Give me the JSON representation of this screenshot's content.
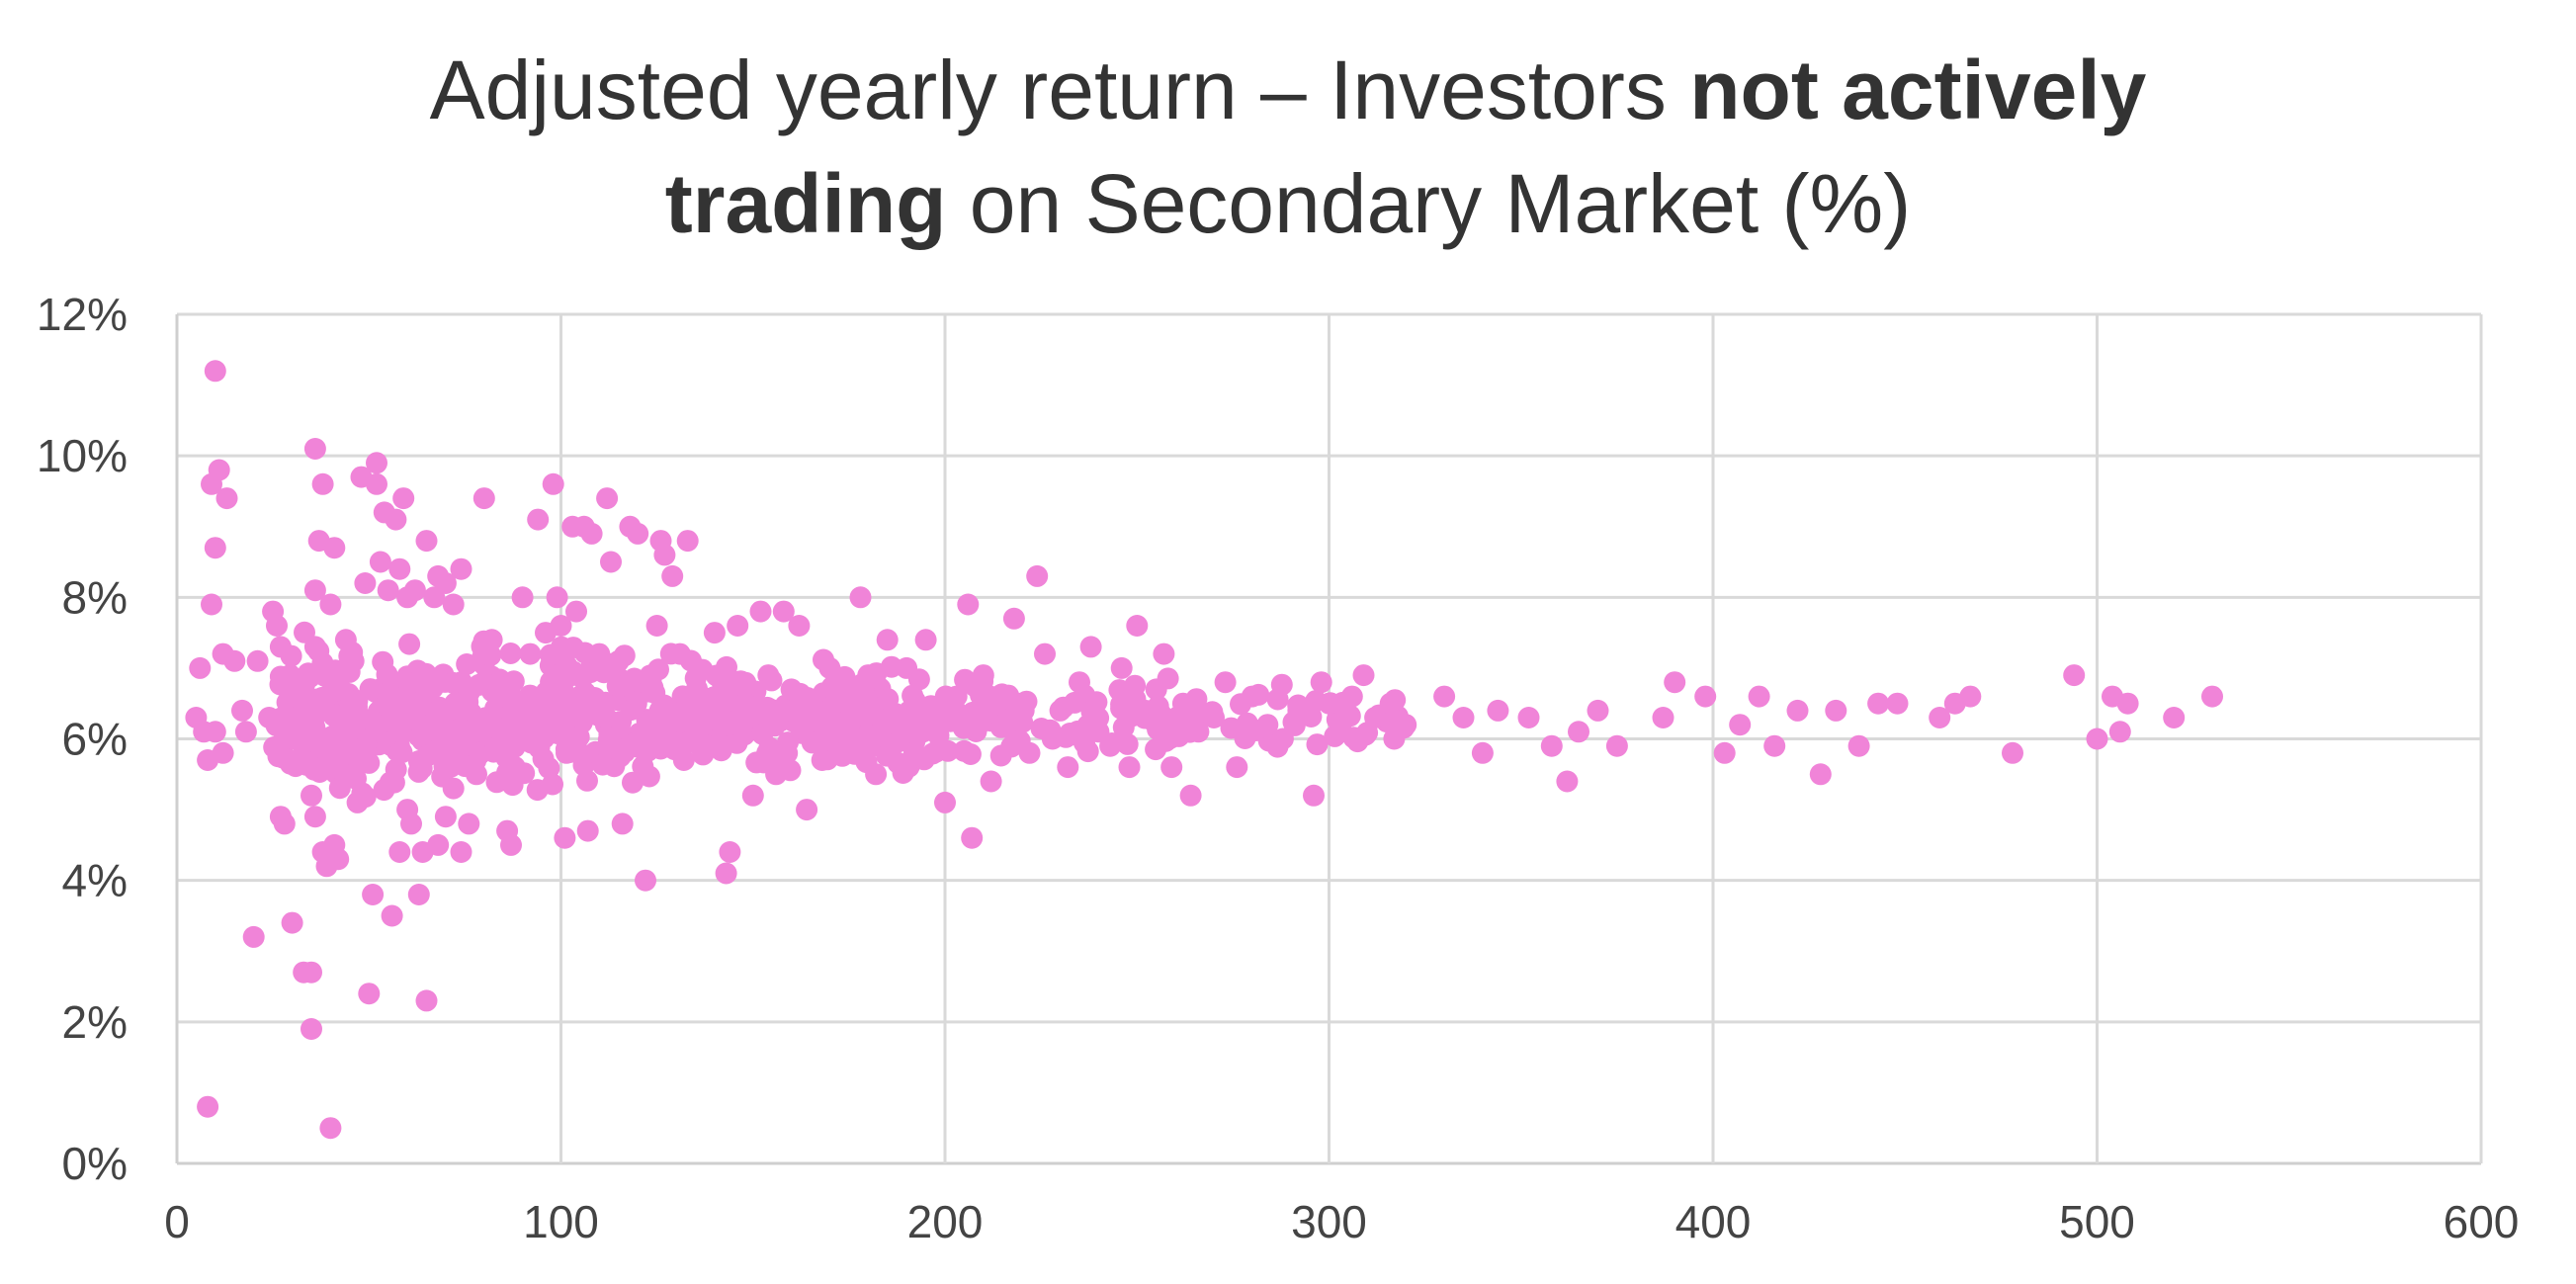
{
  "chart_data": {
    "type": "scatter",
    "title": {
      "line1": [
        {
          "text": "Adjusted yearly return – Investors ",
          "bold": false
        },
        {
          "text": "not actively",
          "bold": true
        }
      ],
      "line2": [
        {
          "text": "trading",
          "bold": true
        },
        {
          "text": " on Secondary Market (%)",
          "bold": false
        }
      ]
    },
    "xlabel": "",
    "ylabel": "",
    "xlim": [
      0,
      600
    ],
    "ylim": [
      0,
      12
    ],
    "x_ticks": [
      0,
      100,
      200,
      300,
      400,
      500,
      600
    ],
    "y_ticks": [
      0,
      2,
      4,
      6,
      8,
      10,
      12
    ],
    "x_tick_labels": [
      "0",
      "100",
      "200",
      "300",
      "400",
      "500",
      "600"
    ],
    "y_tick_labels": [
      "0%",
      "2%",
      "4%",
      "6%",
      "8%",
      "10%",
      "12%"
    ],
    "grid": true,
    "legend": "none",
    "color": "#f084d8",
    "series": [
      {
        "points": [
          [
            10,
            11.2
          ],
          [
            8,
            0.8
          ],
          [
            40,
            0.5
          ],
          [
            6,
            7.0
          ],
          [
            9,
            9.6
          ],
          [
            11,
            9.8
          ],
          [
            13,
            9.4
          ],
          [
            10,
            8.7
          ],
          [
            9,
            7.9
          ],
          [
            12,
            7.2
          ],
          [
            15,
            7.1
          ],
          [
            5,
            6.3
          ],
          [
            7,
            6.1
          ],
          [
            10,
            6.1
          ],
          [
            8,
            5.7
          ],
          [
            12,
            5.8
          ],
          [
            17,
            6.4
          ],
          [
            18,
            6.1
          ],
          [
            20,
            3.2
          ],
          [
            21,
            7.1
          ],
          [
            24,
            6.3
          ],
          [
            25,
            7.8
          ],
          [
            26,
            7.6
          ],
          [
            27,
            7.3
          ],
          [
            28,
            6.0
          ],
          [
            27,
            4.9
          ],
          [
            28,
            4.8
          ],
          [
            30,
            3.4
          ],
          [
            33,
            2.7
          ],
          [
            35,
            2.7
          ],
          [
            35,
            1.9
          ],
          [
            36,
            10.1
          ],
          [
            37,
            8.8
          ],
          [
            36,
            8.1
          ],
          [
            38,
            9.6
          ],
          [
            41,
            8.7
          ],
          [
            40,
            7.9
          ],
          [
            36,
            7.3
          ],
          [
            33,
            6.8
          ],
          [
            38,
            6.5
          ],
          [
            40,
            5.9
          ],
          [
            38,
            5.6
          ],
          [
            35,
            5.2
          ],
          [
            36,
            4.9
          ],
          [
            38,
            4.4
          ],
          [
            39,
            4.2
          ],
          [
            41,
            4.5
          ],
          [
            42,
            4.3
          ],
          [
            44,
            7.4
          ],
          [
            46,
            7.1
          ],
          [
            46,
            5.5
          ],
          [
            47,
            5.1
          ],
          [
            48,
            9.7
          ],
          [
            49,
            8.2
          ],
          [
            50,
            2.4
          ],
          [
            51,
            3.8
          ],
          [
            52,
            9.9
          ],
          [
            52,
            9.6
          ],
          [
            53,
            8.5
          ],
          [
            54,
            9.2
          ],
          [
            55,
            8.1
          ],
          [
            57,
            9.1
          ],
          [
            58,
            8.4
          ],
          [
            59,
            9.4
          ],
          [
            60,
            8.0
          ],
          [
            62,
            8.1
          ],
          [
            56,
            3.5
          ],
          [
            58,
            4.4
          ],
          [
            60,
            5.0
          ],
          [
            61,
            4.8
          ],
          [
            63,
            3.8
          ],
          [
            64,
            4.4
          ],
          [
            65,
            2.3
          ],
          [
            65,
            8.8
          ],
          [
            67,
            8.0
          ],
          [
            68,
            8.3
          ],
          [
            70,
            8.2
          ],
          [
            72,
            7.9
          ],
          [
            74,
            8.4
          ],
          [
            68,
            4.5
          ],
          [
            70,
            4.9
          ],
          [
            72,
            5.3
          ],
          [
            74,
            4.4
          ],
          [
            76,
            4.8
          ],
          [
            78,
            5.5
          ],
          [
            80,
            9.4
          ],
          [
            82,
            7.4
          ],
          [
            84,
            6.6
          ],
          [
            86,
            4.7
          ],
          [
            87,
            4.5
          ],
          [
            88,
            5.6
          ],
          [
            90,
            8.0
          ],
          [
            92,
            7.2
          ],
          [
            94,
            9.1
          ],
          [
            96,
            7.5
          ],
          [
            98,
            9.6
          ],
          [
            99,
            8.0
          ],
          [
            100,
            7.6
          ],
          [
            101,
            4.6
          ],
          [
            103,
            9.0
          ],
          [
            104,
            7.8
          ],
          [
            106,
            9.0
          ],
          [
            107,
            4.7
          ],
          [
            108,
            8.9
          ],
          [
            110,
            7.2
          ],
          [
            112,
            9.4
          ],
          [
            113,
            8.5
          ],
          [
            115,
            7.1
          ],
          [
            116,
            4.8
          ],
          [
            118,
            9.0
          ],
          [
            120,
            8.9
          ],
          [
            122,
            4.0
          ],
          [
            125,
            7.6
          ],
          [
            126,
            8.8
          ],
          [
            127,
            8.6
          ],
          [
            129,
            8.3
          ],
          [
            131,
            7.2
          ],
          [
            132,
            5.7
          ],
          [
            133,
            8.8
          ],
          [
            135,
            6.6
          ],
          [
            138,
            5.9
          ],
          [
            140,
            7.5
          ],
          [
            142,
            6.8
          ],
          [
            143,
            4.1
          ],
          [
            144,
            4.4
          ],
          [
            146,
            7.6
          ],
          [
            148,
            6.5
          ],
          [
            150,
            5.2
          ],
          [
            152,
            7.8
          ],
          [
            154,
            6.9
          ],
          [
            156,
            5.5
          ],
          [
            158,
            7.8
          ],
          [
            160,
            6.7
          ],
          [
            162,
            7.6
          ],
          [
            164,
            5.0
          ],
          [
            166,
            6.3
          ],
          [
            168,
            5.7
          ],
          [
            170,
            7.0
          ],
          [
            172,
            6.1
          ],
          [
            175,
            5.9
          ],
          [
            178,
            8.0
          ],
          [
            180,
            6.9
          ],
          [
            182,
            5.5
          ],
          [
            185,
            7.4
          ],
          [
            188,
            6.3
          ],
          [
            190,
            7.0
          ],
          [
            192,
            5.8
          ],
          [
            195,
            7.4
          ],
          [
            198,
            6.2
          ],
          [
            200,
            5.1
          ],
          [
            203,
            6.6
          ],
          [
            206,
            7.9
          ],
          [
            207,
            4.6
          ],
          [
            210,
            6.9
          ],
          [
            212,
            5.4
          ],
          [
            215,
            6.2
          ],
          [
            218,
            7.7
          ],
          [
            220,
            6.5
          ],
          [
            222,
            5.8
          ],
          [
            224,
            8.3
          ],
          [
            226,
            7.2
          ],
          [
            228,
            6.0
          ],
          [
            230,
            6.4
          ],
          [
            232,
            5.6
          ],
          [
            235,
            6.8
          ],
          [
            238,
            7.3
          ],
          [
            240,
            6.1
          ],
          [
            243,
            5.9
          ],
          [
            246,
            7.0
          ],
          [
            248,
            5.6
          ],
          [
            250,
            7.6
          ],
          [
            252,
            6.4
          ],
          [
            255,
            6.7
          ],
          [
            257,
            7.2
          ],
          [
            259,
            5.6
          ],
          [
            262,
            6.5
          ],
          [
            264,
            5.2
          ],
          [
            266,
            6.1
          ],
          [
            270,
            6.3
          ],
          [
            273,
            6.8
          ],
          [
            276,
            5.6
          ],
          [
            280,
            6.6
          ],
          [
            284,
            6.2
          ],
          [
            288,
            6.0
          ],
          [
            292,
            6.4
          ],
          [
            296,
            5.2
          ],
          [
            298,
            6.8
          ],
          [
            300,
            6.5
          ],
          [
            303,
            6.2
          ],
          [
            306,
            6.6
          ],
          [
            309,
            6.9
          ],
          [
            312,
            6.3
          ],
          [
            316,
            6.5
          ],
          [
            320,
            6.2
          ],
          [
            330,
            6.6
          ],
          [
            335,
            6.3
          ],
          [
            340,
            5.8
          ],
          [
            344,
            6.4
          ],
          [
            352,
            6.3
          ],
          [
            358,
            5.9
          ],
          [
            362,
            5.4
          ],
          [
            365,
            6.1
          ],
          [
            370,
            6.4
          ],
          [
            375,
            5.9
          ],
          [
            387,
            6.3
          ],
          [
            390,
            6.8
          ],
          [
            398,
            6.6
          ],
          [
            403,
            5.8
          ],
          [
            407,
            6.2
          ],
          [
            412,
            6.6
          ],
          [
            416,
            5.9
          ],
          [
            422,
            6.4
          ],
          [
            428,
            5.5
          ],
          [
            432,
            6.4
          ],
          [
            438,
            5.9
          ],
          [
            443,
            6.5
          ],
          [
            448,
            6.5
          ],
          [
            459,
            6.3
          ],
          [
            463,
            6.5
          ],
          [
            467,
            6.6
          ],
          [
            478,
            5.8
          ],
          [
            494,
            6.9
          ],
          [
            500,
            6.0
          ],
          [
            504,
            6.6
          ],
          [
            506,
            6.1
          ],
          [
            508,
            6.5
          ],
          [
            520,
            6.3
          ],
          [
            530,
            6.6
          ]
        ]
      }
    ]
  }
}
